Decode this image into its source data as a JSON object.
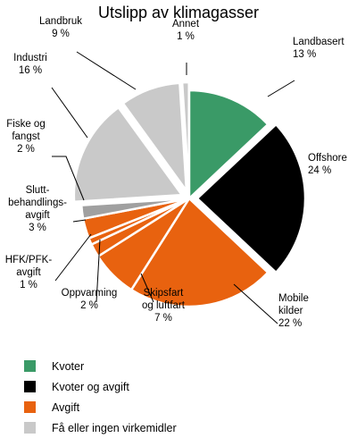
{
  "chart_data": {
    "type": "pie",
    "title": "Utslipp av klimagasser",
    "unit": "%",
    "slices": [
      {
        "label": "Landbasert",
        "value": 13,
        "value_label": "13 %",
        "category": "Kvoter",
        "exploded": false
      },
      {
        "label": "Offshore",
        "value": 24,
        "value_label": "24 %",
        "category": "Kvoter og avgift",
        "exploded": true
      },
      {
        "label": "Mobile kilder",
        "value": 22,
        "value_label": "22 %",
        "category": "Avgift",
        "exploded": false
      },
      {
        "label": "Skipsfart og luftfart",
        "value": 7,
        "value_label": "7 %",
        "category": "Avgift",
        "exploded": false
      },
      {
        "label": "Oppvarming",
        "value": 2,
        "value_label": "2 %",
        "category": "Avgift",
        "exploded": false
      },
      {
        "label": "HFK/PFK-avgift",
        "value": 1,
        "value_label": "1 %",
        "category": "Avgift",
        "exploded": false
      },
      {
        "label": "Sluttbehandlingsavgift",
        "value": 3,
        "value_label": "3 %",
        "category": "Avgift",
        "exploded": false
      },
      {
        "label": "Fiske og fangst",
        "value": 2,
        "value_label": "2 %",
        "category": "Få eller ingen virkemidler",
        "exploded": false
      },
      {
        "label": "Industri",
        "value": 16,
        "value_label": "16 %",
        "category": "Få eller ingen virkemidler",
        "exploded": true
      },
      {
        "label": "Landbruk",
        "value": 9,
        "value_label": "9 %",
        "category": "Få eller ingen virkemidler",
        "exploded": true
      },
      {
        "label": "Annet",
        "value": 1,
        "value_label": "1 %",
        "category": "Få eller ingen virkemidler",
        "exploded": true
      }
    ],
    "legend": [
      {
        "name": "Kvoter",
        "color": "#3a9a67"
      },
      {
        "name": "Kvoter og avgift",
        "color": "#000000"
      },
      {
        "name": "Avgift",
        "color": "#e8620f"
      },
      {
        "name": "Få eller ingen virkemidler",
        "color": "#c9c9c9"
      }
    ],
    "small_slice_color": "#a0a0a0",
    "legend_position": "bottom-left"
  }
}
